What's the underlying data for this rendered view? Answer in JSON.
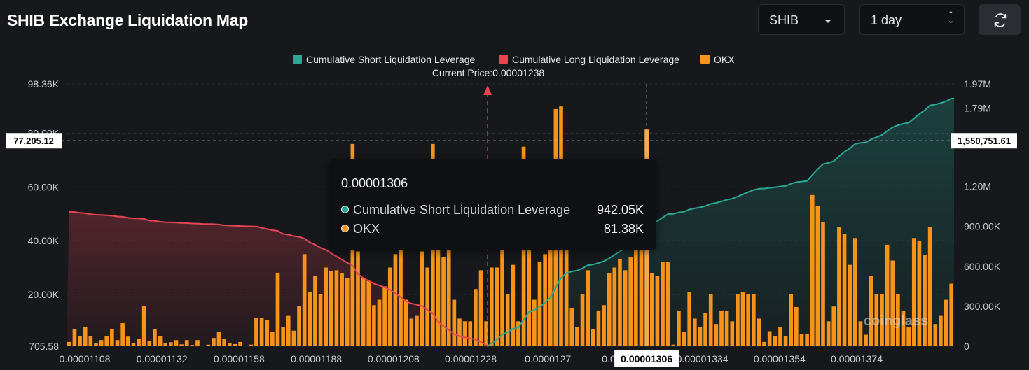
{
  "title": "SHIB Exchange Liquidation Map",
  "controls": {
    "coin_select": "SHIB",
    "range_select": "1 day",
    "refresh_icon": "refresh-icon"
  },
  "colors": {
    "background": "#17181c",
    "short": "#26a895",
    "long": "#e84554",
    "okx": "#f7931a",
    "grid": "#2b2d33"
  },
  "tooltip": {
    "price": "0.00001306",
    "rows": [
      {
        "label": "Cumulative Short Liquidation Leverage",
        "value": "942.05K",
        "color": "#26a895"
      },
      {
        "label": "OKX",
        "value": "81.38K",
        "color": "#f7931a"
      }
    ]
  },
  "watermark": "coinglass",
  "chart_data": {
    "type": "bar",
    "legend": [
      {
        "name": "Cumulative Short Liquidation Leverage",
        "color": "#26a895"
      },
      {
        "name": "Cumulative Long Liquidation Leverage",
        "color": "#e84554"
      },
      {
        "name": "OKX",
        "color": "#f7931a"
      }
    ],
    "current_price_label": "Current Price:0.00001238",
    "legend_position": "top-center",
    "left_axis_ticks": [
      "98.36K",
      "80.00K",
      "60.00K",
      "40.00K",
      "20.00K",
      "705.58"
    ],
    "right_axis_ticks": [
      "1.97M",
      "1.79M",
      "1.20M",
      "900.00K",
      "600.00K",
      "300.00K",
      "0"
    ],
    "x_ticks": [
      "0.00001108",
      "0.00001132",
      "0.00001158",
      "0.00001188",
      "0.00001208",
      "0.00001228",
      "0.0000127",
      "0.0000129",
      "0.00001334",
      "0.00001354",
      "0.00001374"
    ],
    "crosshair_x_label": "0.00001306",
    "crosshair_left_label": "77,205.12",
    "crosshair_right_label": "1,550,751.61",
    "left_ylim": [
      705.58,
      98360
    ],
    "right_ylim": [
      0,
      1970000
    ],
    "x_range": [
      1.108e-05,
      1.382e-05
    ],
    "current_price": 1.238e-05,
    "okx_values": [
      2300,
      7000,
      4500,
      7800,
      4500,
      2000,
      3000,
      4500,
      7000,
      3000,
      9300,
      4300,
      1800,
      3500,
      15700,
      2700,
      7000,
      4500,
      1800,
      2200,
      3000,
      1400,
      3000,
      1200,
      3000,
      800,
      1300,
      3800,
      6000,
      3500,
      1800,
      1500,
      2300,
      900,
      1300,
      11300,
      11300,
      10500,
      6000,
      28000,
      8000,
      12000,
      6500,
      15800,
      35000,
      21000,
      27000,
      20000,
      30000,
      28600,
      29000,
      28000,
      26000,
      76000,
      36000,
      26000,
      25000,
      16000,
      18000,
      23000,
      30000,
      35000,
      40000,
      18000,
      11000,
      12000,
      36000,
      30000,
      76000,
      40000,
      34000,
      38000,
      18000,
      11000,
      10000,
      10000,
      22000,
      29000,
      10000,
      30000,
      30000,
      50000,
      20000,
      31000,
      10000,
      75000,
      70000,
      18000,
      32000,
      35000,
      50000,
      89000,
      90000,
      45000,
      15000,
      8000,
      20000,
      29000,
      7000,
      14000,
      16000,
      28000,
      30000,
      33000,
      29000,
      34000,
      38000,
      43000,
      81380,
      28000,
      27000,
      32000,
      32000,
      1300,
      14000,
      6000,
      21000,
      11000,
      8000,
      13000,
      20000,
      9000,
      14000,
      14000,
      10000,
      20000,
      21000,
      20000,
      20000,
      11000,
      2300,
      6300,
      4600,
      7800,
      4500,
      20000,
      15300,
      5200,
      5300,
      57000,
      53000,
      47000,
      10000,
      15500,
      45000,
      42500,
      31000,
      41000,
      10000,
      5000,
      27000,
      20000,
      20000,
      38500,
      32600,
      20000,
      13800,
      8000,
      41000,
      40000,
      34800,
      45000,
      9000,
      12000,
      18000,
      24000
    ]
  }
}
